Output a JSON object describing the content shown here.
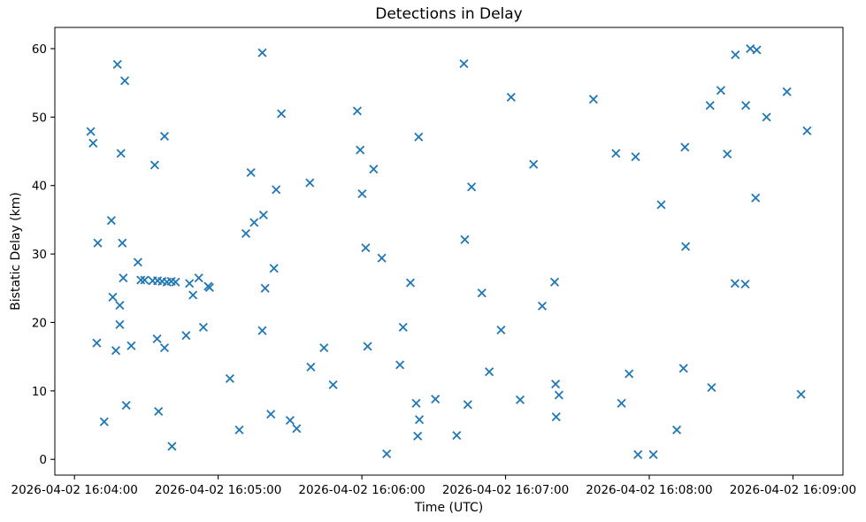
{
  "chart_data": {
    "type": "scatter",
    "title": "Detections in Delay",
    "xlabel": "Time (UTC)",
    "ylabel": "Bistatic Delay (km)",
    "marker": "x",
    "marker_color": "#1f77b4",
    "grid": false,
    "legend": null,
    "x_unit": "seconds since 2026-04-02 16:04:00 UTC",
    "x_tick_seconds": [
      0,
      60,
      120,
      180,
      240,
      300
    ],
    "x_tick_labels": [
      "2026-04-02 16:04:00",
      "2026-04-02 16:05:00",
      "2026-04-02 16:06:00",
      "2026-04-02 16:07:00",
      "2026-04-02 16:08:00",
      "2026-04-02 16:09:00"
    ],
    "y_ticks": [
      0,
      10,
      20,
      30,
      40,
      50,
      60
    ],
    "xlim_seconds": [
      -8.2,
      320.9
    ],
    "ylim": [
      -2.3,
      63.1
    ],
    "points": [
      [
        17.9,
        57.7
      ],
      [
        21.0,
        55.3
      ],
      [
        6.8,
        47.9
      ],
      [
        7.8,
        46.2
      ],
      [
        37.6,
        47.2
      ],
      [
        19.4,
        44.7
      ],
      [
        33.5,
        43.0
      ],
      [
        15.4,
        34.9
      ],
      [
        9.7,
        31.6
      ],
      [
        20.0,
        31.6
      ],
      [
        26.5,
        28.8
      ],
      [
        20.4,
        26.5
      ],
      [
        27.7,
        26.2
      ],
      [
        29.3,
        26.2
      ],
      [
        32.6,
        26.1
      ],
      [
        34.7,
        26.1
      ],
      [
        36.6,
        26.0
      ],
      [
        38.6,
        25.9
      ],
      [
        40.4,
        26.0
      ],
      [
        42.2,
        25.9
      ],
      [
        48.0,
        25.7
      ],
      [
        16.0,
        23.7
      ],
      [
        18.9,
        22.5
      ],
      [
        18.9,
        19.7
      ],
      [
        9.3,
        17.0
      ],
      [
        17.3,
        15.9
      ],
      [
        23.7,
        16.6
      ],
      [
        34.5,
        17.6
      ],
      [
        37.6,
        16.3
      ],
      [
        46.6,
        18.1
      ],
      [
        21.6,
        7.9
      ],
      [
        35.1,
        7.0
      ],
      [
        12.4,
        5.5
      ],
      [
        40.7,
        1.9
      ],
      [
        78.4,
        59.4
      ],
      [
        86.4,
        50.5
      ],
      [
        73.7,
        41.9
      ],
      [
        84.2,
        39.4
      ],
      [
        98.3,
        40.4
      ],
      [
        78.9,
        35.7
      ],
      [
        75.0,
        34.6
      ],
      [
        71.6,
        33.0
      ],
      [
        83.3,
        27.9
      ],
      [
        51.9,
        26.5
      ],
      [
        55.8,
        25.3
      ],
      [
        56.4,
        25.1
      ],
      [
        49.5,
        24.0
      ],
      [
        79.6,
        25.0
      ],
      [
        53.8,
        19.3
      ],
      [
        78.4,
        18.8
      ],
      [
        104.2,
        16.3
      ],
      [
        98.7,
        13.5
      ],
      [
        64.9,
        11.8
      ],
      [
        82.0,
        6.6
      ],
      [
        90.0,
        5.7
      ],
      [
        92.8,
        4.5
      ],
      [
        68.8,
        4.3
      ],
      [
        118.1,
        50.9
      ],
      [
        143.7,
        47.1
      ],
      [
        119.3,
        45.2
      ],
      [
        124.9,
        42.4
      ],
      [
        120.1,
        38.8
      ],
      [
        121.6,
        30.9
      ],
      [
        128.3,
        29.4
      ],
      [
        140.3,
        25.8
      ],
      [
        137.2,
        19.3
      ],
      [
        122.4,
        16.5
      ],
      [
        135.9,
        13.8
      ],
      [
        108.0,
        10.9
      ],
      [
        142.7,
        8.2
      ],
      [
        150.7,
        8.8
      ],
      [
        144.0,
        5.8
      ],
      [
        143.3,
        3.4
      ],
      [
        159.6,
        3.5
      ],
      [
        130.4,
        0.8
      ],
      [
        162.6,
        57.8
      ],
      [
        182.3,
        52.9
      ],
      [
        191.7,
        43.1
      ],
      [
        165.8,
        39.8
      ],
      [
        163.0,
        32.1
      ],
      [
        200.5,
        25.9
      ],
      [
        170.1,
        24.3
      ],
      [
        195.3,
        22.4
      ],
      [
        178.1,
        18.9
      ],
      [
        173.2,
        12.8
      ],
      [
        200.9,
        11.0
      ],
      [
        202.3,
        9.4
      ],
      [
        186.1,
        8.7
      ],
      [
        164.2,
        8.0
      ],
      [
        201.1,
        6.2
      ],
      [
        216.7,
        52.6
      ],
      [
        269.9,
        53.9
      ],
      [
        265.4,
        51.7
      ],
      [
        254.9,
        45.6
      ],
      [
        226.1,
        44.7
      ],
      [
        234.3,
        44.2
      ],
      [
        245.0,
        37.2
      ],
      [
        255.2,
        31.1
      ],
      [
        254.3,
        13.3
      ],
      [
        231.6,
        12.5
      ],
      [
        266.0,
        10.5
      ],
      [
        228.4,
        8.2
      ],
      [
        251.5,
        4.3
      ],
      [
        235.3,
        0.7
      ],
      [
        241.7,
        0.7
      ],
      [
        276.0,
        59.1
      ],
      [
        282.2,
        60.0
      ],
      [
        284.9,
        59.8
      ],
      [
        297.5,
        53.7
      ],
      [
        280.3,
        51.7
      ],
      [
        289.0,
        50.0
      ],
      [
        305.9,
        48.0
      ],
      [
        272.6,
        44.6
      ],
      [
        284.4,
        38.2
      ],
      [
        275.8,
        25.7
      ],
      [
        280.1,
        25.6
      ],
      [
        303.4,
        9.5
      ]
    ]
  }
}
